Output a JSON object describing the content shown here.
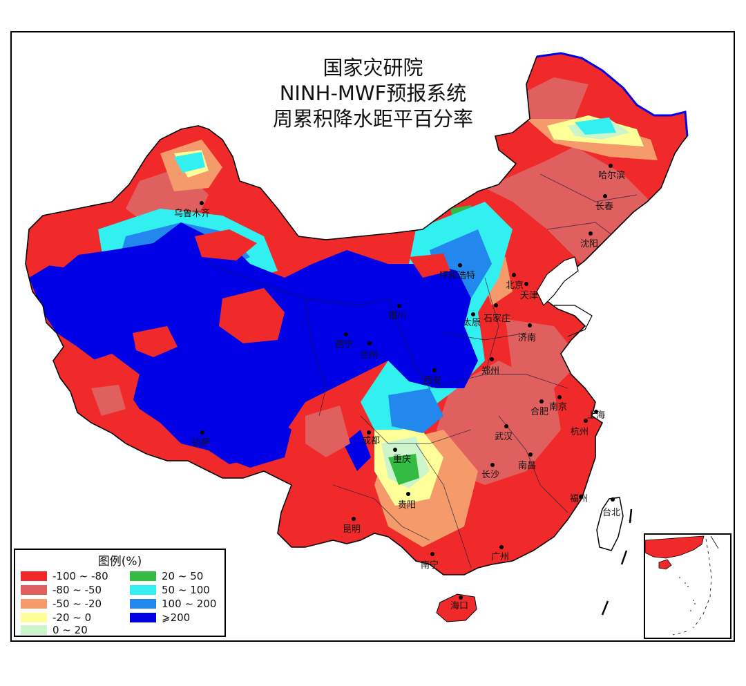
{
  "title": {
    "line1": "国家灾研院",
    "line2": "NINH-MWF预报系统",
    "line3": "周累积降水距平百分率"
  },
  "legend": {
    "title": "图例(%)",
    "items": [
      {
        "label": "-100 ~ -80",
        "color": "#f02a2a"
      },
      {
        "label": "-80 ~ -50",
        "color": "#e06060"
      },
      {
        "label": "-50 ~ -20",
        "color": "#f59a6a"
      },
      {
        "label": "-20 ~ 0",
        "color": "#ffff99"
      },
      {
        "label": "0 ~ 20",
        "color": "#ccf5cc"
      },
      {
        "label": "20 ~ 50",
        "color": "#33bb44"
      },
      {
        "label": "50 ~ 100",
        "color": "#33f0f0"
      },
      {
        "label": "100 ~ 200",
        "color": "#2288ee"
      },
      {
        "label": "⩾200",
        "color": "#0000e6"
      }
    ]
  },
  "cities": [
    {
      "name": "乌鲁木齐"
    },
    {
      "name": "哈尔滨"
    },
    {
      "name": "长春"
    },
    {
      "name": "沈阳"
    },
    {
      "name": "呼和浩特"
    },
    {
      "name": "北京"
    },
    {
      "name": "天津"
    },
    {
      "name": "银川"
    },
    {
      "name": "太原"
    },
    {
      "name": "石家庄"
    },
    {
      "name": "济南"
    },
    {
      "name": "西宁"
    },
    {
      "name": "兰州"
    },
    {
      "name": "郑州"
    },
    {
      "name": "西安"
    },
    {
      "name": "南京"
    },
    {
      "name": "合肥"
    },
    {
      "name": "上海"
    },
    {
      "name": "杭州"
    },
    {
      "name": "拉萨"
    },
    {
      "name": "成都"
    },
    {
      "name": "武汉"
    },
    {
      "name": "重庆"
    },
    {
      "name": "南昌"
    },
    {
      "name": "长沙"
    },
    {
      "name": "贵阳"
    },
    {
      "name": "福州"
    },
    {
      "name": "台北"
    },
    {
      "name": "昆明"
    },
    {
      "name": "南宁"
    },
    {
      "name": "广州"
    },
    {
      "name": "海口"
    }
  ]
}
